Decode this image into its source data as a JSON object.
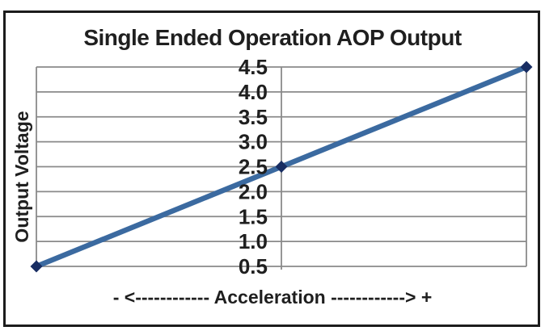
{
  "figure": {
    "title": "Single Ended Operation AOP Output",
    "y_axis_title": "Output Voltage",
    "x_axis_title": "- <------------ Acceleration ------------> +"
  },
  "colors": {
    "background": "#ffffff",
    "border": "#1c1c1c",
    "text": "#1f1f1f",
    "gridline": "#8a8a8a",
    "axis_line": "#8a8a8a",
    "line": "#3b6aa0",
    "marker": "#182d62"
  },
  "chart_data": {
    "type": "line",
    "title": "Single Ended Operation AOP Output",
    "xlabel": "- <------------ Acceleration ------------> +",
    "ylabel": "Output Voltage",
    "x_relative": [
      0,
      0.5,
      1
    ],
    "values": [
      0.5,
      2.5,
      4.5
    ],
    "y_ticks": [
      4.5,
      4.0,
      3.5,
      3.0,
      2.5,
      2.0,
      1.5,
      1.0,
      0.5
    ],
    "ylim": [
      0.5,
      4.5
    ],
    "grid": "horizontal",
    "legend": "none",
    "marker": "diamond",
    "y_axis_position": "center"
  }
}
